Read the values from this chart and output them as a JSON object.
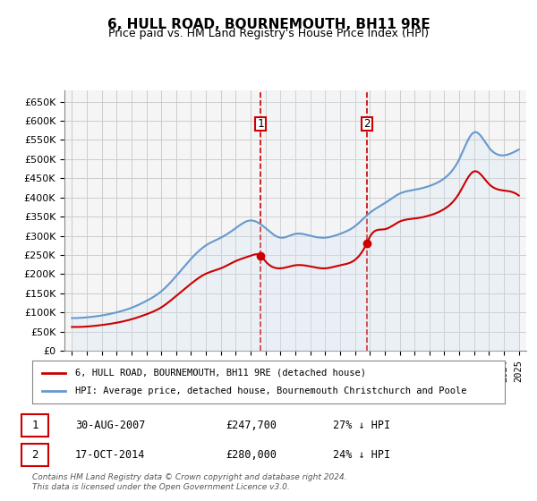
{
  "title": "6, HULL ROAD, BOURNEMOUTH, BH11 9RE",
  "subtitle": "Price paid vs. HM Land Registry's House Price Index (HPI)",
  "ylabel_ticks": [
    "£0",
    "£50K",
    "£100K",
    "£150K",
    "£200K",
    "£250K",
    "£300K",
    "£350K",
    "£400K",
    "£450K",
    "£500K",
    "£550K",
    "£600K",
    "£650K"
  ],
  "ylim": [
    0,
    680000
  ],
  "ytick_vals": [
    0,
    50000,
    100000,
    150000,
    200000,
    250000,
    300000,
    350000,
    400000,
    450000,
    500000,
    550000,
    600000,
    650000
  ],
  "xlim_start": 1994.5,
  "xlim_end": 2025.5,
  "sale1_x": 2007.667,
  "sale1_y": 247700,
  "sale2_x": 2014.792,
  "sale2_y": 280000,
  "transaction_color": "#cc0000",
  "hpi_color": "#6699cc",
  "hpi_fill_color": "#d0e4f7",
  "grid_color": "#cccccc",
  "vline_color": "#cc0000",
  "box_color": "#cc0000",
  "annotation_bg": "#e8f0f8",
  "legend_label1": "6, HULL ROAD, BOURNEMOUTH, BH11 9RE (detached house)",
  "legend_label2": "HPI: Average price, detached house, Bournemouth Christchurch and Poole",
  "table_row1": [
    "1",
    "30-AUG-2007",
    "£247,700",
    "27% ↓ HPI"
  ],
  "table_row2": [
    "2",
    "17-OCT-2014",
    "£280,000",
    "24% ↓ HPI"
  ],
  "footnote": "Contains HM Land Registry data © Crown copyright and database right 2024.\nThis data is licensed under the Open Government Licence v3.0.",
  "background_color": "#ffffff",
  "plot_bg_color": "#f5f5f5"
}
